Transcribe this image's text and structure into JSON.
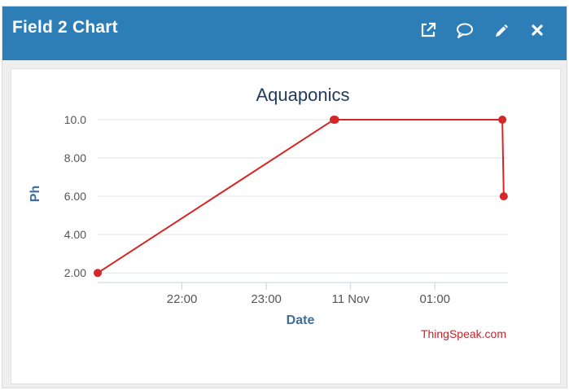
{
  "header": {
    "title": "Field 2 Chart",
    "buttons": [
      {
        "name": "open-external",
        "icon": "external-link-icon"
      },
      {
        "name": "comment",
        "icon": "comment-icon"
      },
      {
        "name": "edit",
        "icon": "pencil-icon"
      },
      {
        "name": "close",
        "icon": "close-icon"
      }
    ]
  },
  "colors": {
    "header_bg": "#2d7eb7",
    "series": "#d62728",
    "title": "#1f3a5a",
    "axis_title": "#3e6d9c",
    "credit": "#c0262b"
  },
  "chart_data": {
    "type": "line",
    "title": "Aquaponics",
    "xlabel": "Date",
    "ylabel": "Ph",
    "ylim": [
      1.5,
      10.0
    ],
    "yticks": [
      2,
      4,
      6,
      8,
      10
    ],
    "ytick_labels": [
      "2.00",
      "4.00",
      "6.00",
      "8.00",
      "10.0"
    ],
    "xlim": [
      "2023-11-10T21:00",
      "2023-11-11T01:52"
    ],
    "xticks": [
      "2023-11-10T22:00",
      "2023-11-10T23:00",
      "2023-11-11T00:00",
      "2023-11-11T01:00"
    ],
    "xtick_labels": [
      "22:00",
      "23:00",
      "11 Nov",
      "01:00"
    ],
    "series": [
      {
        "x": [
          "2023-11-10T21:00",
          "2023-11-10T23:48",
          "2023-11-10T23:49",
          "2023-11-11T01:48",
          "2023-11-11T01:49"
        ],
        "values": [
          2,
          10,
          10,
          10,
          6
        ]
      }
    ],
    "grid": true,
    "legend": "none",
    "credit": "ThingSpeak.com"
  }
}
